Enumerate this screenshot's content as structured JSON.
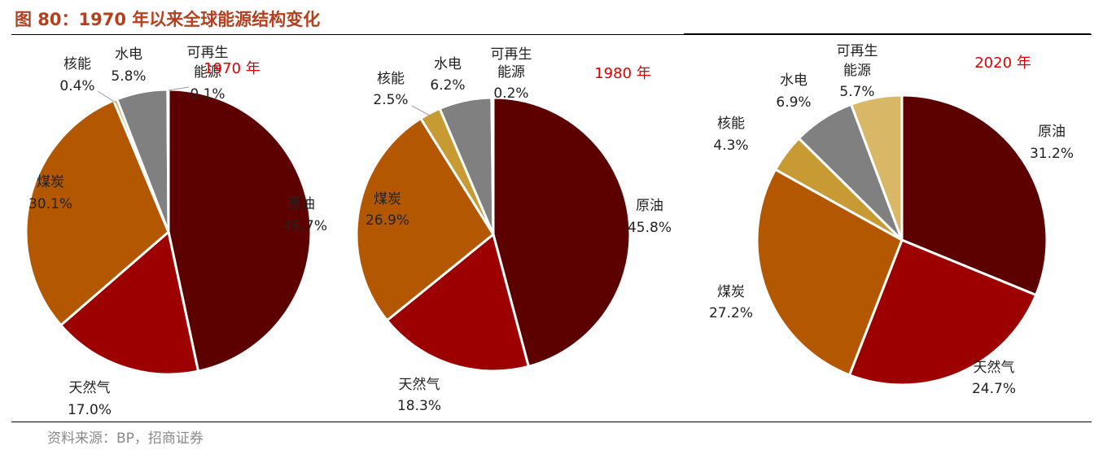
{
  "figure": {
    "title": "图 80：1970 年以来全球能源结构变化",
    "source": "资料来源：BP，招商证券"
  },
  "colors": {
    "原油": "#5c0000",
    "天然气": "#9c0000",
    "煤炭": "#b35800",
    "核能": "#c79a34",
    "水电": "#808080",
    "可再生能源": "#d8b867"
  },
  "chart_data": [
    {
      "type": "pie",
      "title": "1970 年",
      "slices": [
        {
          "label": "原油",
          "value": 46.7,
          "pct": "46.7%"
        },
        {
          "label": "天然气",
          "value": 17.0,
          "pct": "17.0%"
        },
        {
          "label": "煤炭",
          "value": 30.1,
          "pct": "30.1%"
        },
        {
          "label": "核能",
          "value": 0.4,
          "pct": "0.4%"
        },
        {
          "label": "水电",
          "value": 5.8,
          "pct": "5.8%"
        },
        {
          "label": "可再生能源",
          "value": 0.1,
          "pct": "0.1%"
        }
      ]
    },
    {
      "type": "pie",
      "title": "1980 年",
      "slices": [
        {
          "label": "原油",
          "value": 45.8,
          "pct": "45.8%"
        },
        {
          "label": "天然气",
          "value": 18.3,
          "pct": "18.3%"
        },
        {
          "label": "煤炭",
          "value": 26.9,
          "pct": "26.9%"
        },
        {
          "label": "核能",
          "value": 2.5,
          "pct": "2.5%"
        },
        {
          "label": "水电",
          "value": 6.2,
          "pct": "6.2%"
        },
        {
          "label": "可再生能源",
          "value": 0.2,
          "pct": "0.2%"
        }
      ]
    },
    {
      "type": "pie",
      "title": "2020 年",
      "slices": [
        {
          "label": "原油",
          "value": 31.2,
          "pct": "31.2%"
        },
        {
          "label": "天然气",
          "value": 24.7,
          "pct": "24.7%"
        },
        {
          "label": "煤炭",
          "value": 27.2,
          "pct": "27.2%"
        },
        {
          "label": "核能",
          "value": 4.3,
          "pct": "4.3%"
        },
        {
          "label": "水电",
          "value": 6.9,
          "pct": "6.9%"
        },
        {
          "label": "可再生能源",
          "value": 5.7,
          "pct": "5.7%"
        }
      ]
    }
  ]
}
